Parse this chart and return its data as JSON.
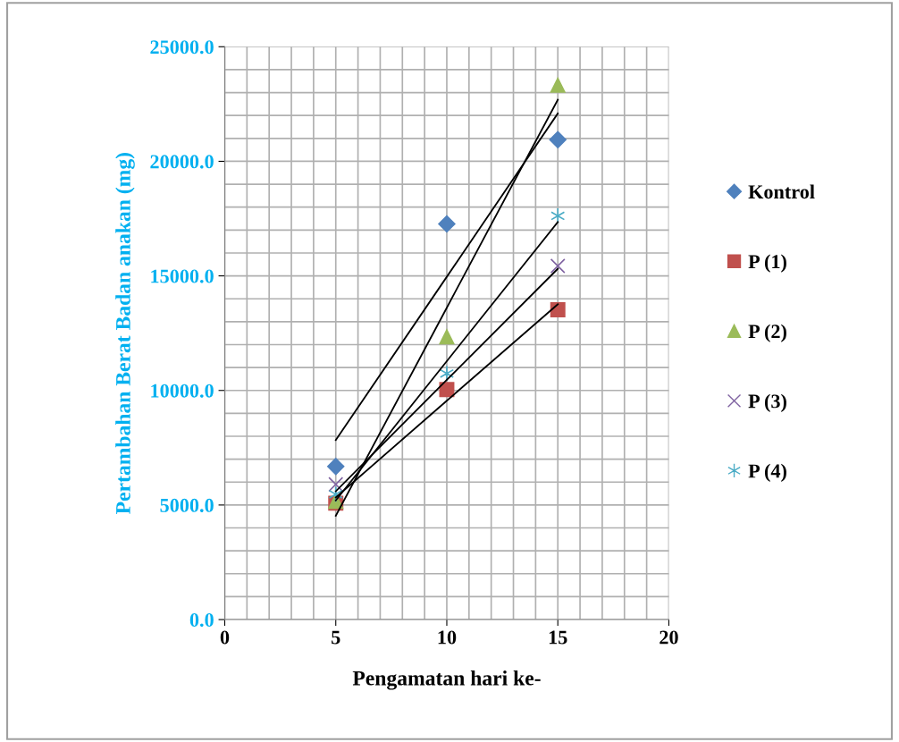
{
  "chart_data": {
    "type": "scatter",
    "xlabel": "Pengamatan hari ke-",
    "ylabel": "Pertambahan Berat Badan anakan (mg)",
    "x": [
      5,
      10,
      15
    ],
    "xlim": [
      0,
      20
    ],
    "xticks": [
      0,
      5,
      10,
      15,
      20
    ],
    "ylim": [
      0,
      25000
    ],
    "yticks": [
      {
        "value": 0,
        "label": "0.0"
      },
      {
        "value": 5000,
        "label": "5000.0"
      },
      {
        "value": 10000,
        "label": "10000.0"
      },
      {
        "value": 15000,
        "label": "15000.0"
      },
      {
        "value": 20000,
        "label": "20000.0"
      },
      {
        "value": 25000,
        "label": "25000.0"
      }
    ],
    "grid": true,
    "legend": "right",
    "series": [
      {
        "name": "Kontrol",
        "color": "#4f81bd",
        "marker": "diamond",
        "values": [
          6680,
          17270,
          20940
        ]
      },
      {
        "name": "P (1)",
        "color": "#c0504d",
        "marker": "square",
        "values": [
          5080,
          10040,
          13520
        ]
      },
      {
        "name": "P (2)",
        "color": "#9bbb59",
        "marker": "triangle",
        "values": [
          5160,
          12340,
          23320
        ]
      },
      {
        "name": "P (3)",
        "color": "#8064a2",
        "marker": "cross",
        "values": [
          5900,
          null,
          15430
        ]
      },
      {
        "name": "P (4)",
        "color": "#4bacc6",
        "marker": "cross",
        "values": [
          5470,
          10740,
          17620
        ]
      },
      {
        "type": "line",
        "color": "#000000",
        "marker": "none",
        "values": [
          7830,
          14960,
          22090
        ]
      },
      {
        "type": "line",
        "color": "#000000",
        "marker": "none",
        "values": [
          5330,
          9550,
          13760
        ]
      },
      {
        "type": "line",
        "color": "#000000",
        "marker": "none",
        "values": [
          4530,
          13610,
          22690
        ]
      },
      {
        "type": "line",
        "color": "#000000",
        "marker": "none",
        "values": [
          5600,
          10460,
          15310
        ]
      },
      {
        "type": "line",
        "color": "#000000",
        "marker": "none",
        "values": [
          5200,
          11280,
          17350
        ]
      }
    ]
  }
}
